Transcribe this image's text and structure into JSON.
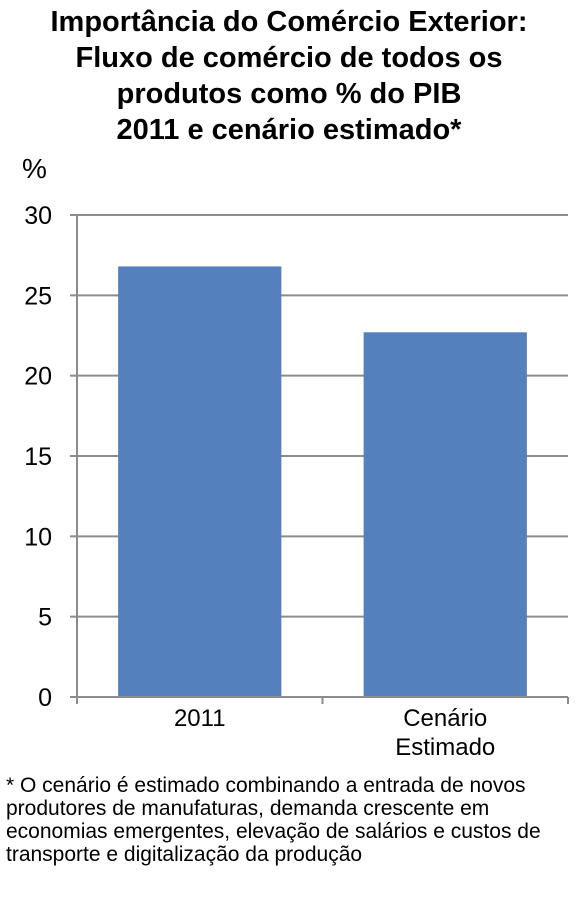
{
  "chart_data": {
    "type": "bar",
    "title_lines": [
      "Importância do Comércio Exterior:",
      "Fluxo de comércio de todos os",
      "produtos como % do PIB",
      "2011 e cenário estimado*"
    ],
    "ylabel": "%",
    "xlabel": "",
    "categories": [
      [
        "2011"
      ],
      [
        "Cenário",
        "Estimado"
      ]
    ],
    "values": [
      26.8,
      22.7
    ],
    "ylim": [
      0,
      30
    ],
    "yticks": [
      0,
      5,
      10,
      15,
      20,
      25,
      30
    ],
    "grid": true,
    "bar_color": "#5580be"
  },
  "footnote": "* O cenário é estimado combinando a entrada de novos produtores de manufaturas, demanda crescente em economias emergentes, elevação de salários e custos de transporte e digitalização da produção"
}
